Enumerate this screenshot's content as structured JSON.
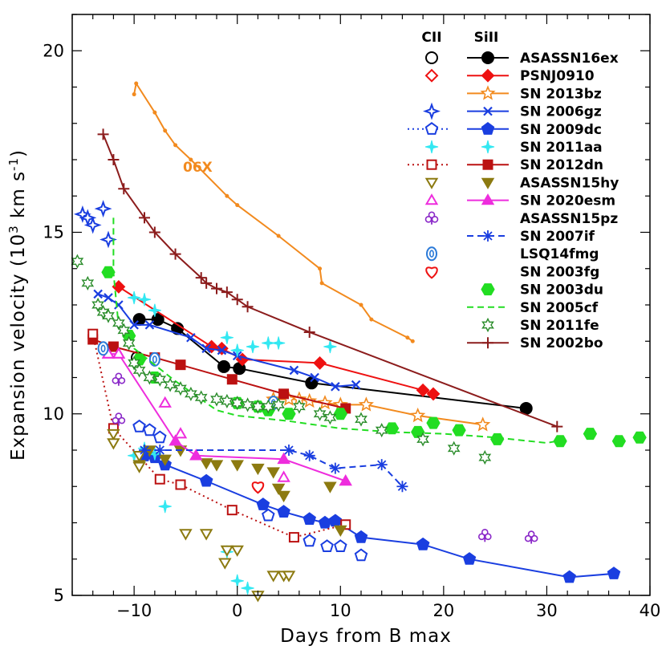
{
  "chart_data": {
    "type": "scatter",
    "xlabel": "Days from B max",
    "ylabel": "Expansion velocity (10³ km s⁻¹)",
    "ylabel_parts": {
      "main": "Expansion velocity (10",
      "sup1": "3",
      "unit": " km s",
      "sup2": "-1",
      "close": ")"
    },
    "xlim": [
      -16,
      40
    ],
    "ylim": [
      5,
      21
    ],
    "xticks": [
      -10,
      0,
      10,
      20,
      30,
      40
    ],
    "yticks": [
      5,
      10,
      15,
      20
    ],
    "legend_headers": {
      "c2": "CII",
      "si2": "SiII"
    },
    "annotations": [
      {
        "text": "06X",
        "x": -5.5,
        "y": 16.7,
        "color": "#f28a1e"
      }
    ],
    "series": [
      {
        "name": "ASASSN16ex",
        "color": "#000000",
        "marker": "circle",
        "fill": true,
        "line": "solid",
        "si": [
          [
            -9.5,
            12.6
          ],
          [
            -7.7,
            12.6
          ],
          [
            -5.8,
            12.35
          ],
          [
            -1.3,
            11.3
          ],
          [
            0.2,
            11.25
          ],
          [
            7.2,
            10.85
          ],
          [
            28,
            10.15
          ]
        ],
        "c": [
          [
            -9.7,
            11.55
          ]
        ]
      },
      {
        "name": "PSNJ0910",
        "color": "#ee1111",
        "marker": "diamond",
        "fill": true,
        "line": "solid",
        "si": [
          [
            -11.5,
            13.5
          ],
          [
            -2.5,
            11.85
          ],
          [
            -1.5,
            11.8
          ],
          [
            0.5,
            11.5
          ],
          [
            8,
            11.4
          ],
          [
            18,
            10.65
          ],
          [
            19,
            10.55
          ]
        ],
        "c": []
      },
      {
        "name": "SN 2013bz",
        "color": "#f28a1e",
        "marker": "star5",
        "fill": false,
        "line": "solid",
        "si": [
          [
            3.5,
            10.4
          ],
          [
            5,
            10.4
          ],
          [
            6,
            10.4
          ],
          [
            7,
            10.35
          ],
          [
            8.5,
            10.3
          ],
          [
            10,
            10.25
          ],
          [
            12.5,
            10.25
          ],
          [
            17.5,
            9.95
          ],
          [
            23.8,
            9.7
          ]
        ],
        "c": []
      },
      {
        "name": "SN 2006gz",
        "color": "#1a3ee0",
        "marker": "cross",
        "fill": false,
        "line": "solid",
        "si": [
          [
            -13.5,
            13.3
          ],
          [
            -12.5,
            13.2
          ],
          [
            -11.5,
            13.0
          ],
          [
            -10,
            12.45
          ],
          [
            -8.5,
            12.45
          ],
          [
            -4.5,
            12.1
          ],
          [
            -3,
            11.8
          ],
          [
            -1.5,
            11.75
          ],
          [
            0,
            11.6
          ],
          [
            5.5,
            11.2
          ],
          [
            7.5,
            11.0
          ],
          [
            9.5,
            10.75
          ],
          [
            11.5,
            10.8
          ]
        ],
        "c": [
          [
            -15,
            15.5
          ],
          [
            -14,
            15.2
          ],
          [
            -12.5,
            14.8
          ],
          [
            -14.5,
            15.4
          ],
          [
            -13,
            15.65
          ]
        ]
      },
      {
        "name": "SN 2009dc",
        "color": "#1a3ee0",
        "marker": "pentagon",
        "fill": true,
        "line": "solid",
        "si": [
          [
            -9,
            8.85
          ],
          [
            -8,
            8.8
          ],
          [
            -7,
            8.6
          ],
          [
            -3,
            8.15
          ],
          [
            2.5,
            7.5
          ],
          [
            4.5,
            7.3
          ],
          [
            7,
            7.1
          ],
          [
            8.5,
            7.0
          ],
          [
            9.5,
            7.05
          ],
          [
            12,
            6.6
          ],
          [
            18,
            6.4
          ],
          [
            22.5,
            6.0
          ],
          [
            32.2,
            5.5
          ],
          [
            36.5,
            5.6
          ]
        ],
        "c": [
          [
            -9.5,
            9.65
          ],
          [
            -8.5,
            9.55
          ],
          [
            -7.5,
            9.35
          ],
          [
            3,
            7.2
          ],
          [
            7,
            6.5
          ],
          [
            8.7,
            6.35
          ],
          [
            10,
            6.35
          ],
          [
            12,
            6.1
          ]
        ]
      },
      {
        "name": "SN 2011aa",
        "color": "#33e8f2",
        "marker": "spark",
        "fill": true,
        "line": "none",
        "si": [
          [
            -10,
            13.2
          ],
          [
            -9,
            13.15
          ],
          [
            -8,
            12.85
          ],
          [
            -1,
            12.1
          ],
          [
            0,
            11.75
          ],
          [
            1.5,
            11.85
          ],
          [
            3,
            11.95
          ],
          [
            4,
            11.95
          ],
          [
            9,
            11.85
          ]
        ],
        "c": [
          [
            -10,
            8.85
          ],
          [
            -9,
            9.05
          ],
          [
            -8,
            8.9
          ],
          [
            -7,
            7.45
          ],
          [
            -1,
            6.2
          ],
          [
            0,
            5.4
          ],
          [
            1,
            5.2
          ]
        ]
      },
      {
        "name": "SN 2012dn",
        "color": "#bb1111",
        "marker": "square",
        "fill": true,
        "line": "solid",
        "si": [
          [
            -14,
            12.05
          ],
          [
            -12,
            11.85
          ],
          [
            -8,
            11.55
          ],
          [
            -5.5,
            11.35
          ],
          [
            -0.5,
            10.95
          ],
          [
            4.5,
            10.55
          ],
          [
            10.5,
            10.15
          ]
        ],
        "c": [
          [
            -14,
            12.2
          ],
          [
            -12,
            9.6
          ],
          [
            -7.5,
            8.2
          ],
          [
            -5.5,
            8.05
          ],
          [
            -0.5,
            7.35
          ],
          [
            5.5,
            6.6
          ],
          [
            10.5,
            6.95
          ]
        ]
      },
      {
        "name": "ASASSN15hy",
        "color": "#8c7a10",
        "marker": "tri-down",
        "fill": true,
        "line": "none",
        "si": [
          [
            -9.5,
            8.6
          ],
          [
            -8.5,
            9.0
          ],
          [
            -7,
            8.75
          ],
          [
            -5.5,
            9.0
          ],
          [
            -3,
            8.65
          ],
          [
            -2,
            8.6
          ],
          [
            0,
            8.6
          ],
          [
            2,
            8.5
          ],
          [
            3.5,
            8.4
          ],
          [
            4,
            7.95
          ],
          [
            4.5,
            7.75
          ],
          [
            9,
            8.0
          ],
          [
            10,
            6.8
          ]
        ],
        "c": [
          [
            -12,
            9.45
          ],
          [
            -12,
            9.2
          ],
          [
            -9.5,
            8.85
          ],
          [
            -9.5,
            8.55
          ],
          [
            -5,
            6.7
          ],
          [
            -3,
            6.7
          ],
          [
            -1,
            6.25
          ],
          [
            0,
            6.25
          ],
          [
            -1.2,
            5.9
          ],
          [
            3.5,
            5.55
          ],
          [
            4.5,
            5.55
          ],
          [
            5,
            5.55
          ],
          [
            2,
            5.0
          ]
        ]
      },
      {
        "name": "SN 2020esm",
        "color": "#ee2ddd",
        "marker": "tri-up",
        "fill": true,
        "line": "solid",
        "si": [
          [
            -12.5,
            11.65
          ],
          [
            -11.5,
            11.65
          ],
          [
            -6,
            9.25
          ],
          [
            -4,
            8.85
          ],
          [
            4.5,
            8.75
          ],
          [
            10.5,
            8.15
          ]
        ],
        "c": [
          [
            -12.5,
            11.65
          ],
          [
            -11.5,
            11.65
          ],
          [
            -7,
            10.3
          ],
          [
            -5.5,
            9.45
          ],
          [
            4.5,
            8.25
          ]
        ]
      },
      {
        "name": "ASASSN15pz",
        "color": "#8a28c8",
        "marker": "club",
        "fill": false,
        "line": "none",
        "si": [],
        "c": [
          [
            -11.5,
            10.95
          ],
          [
            -11.5,
            9.85
          ],
          [
            24,
            6.65
          ],
          [
            28.5,
            6.6
          ]
        ]
      },
      {
        "name": "SN 2007if",
        "color": "#1a3ee0",
        "marker": "asterisk",
        "fill": false,
        "line": "dashed",
        "si": [
          [
            -9,
            9.0
          ],
          [
            -7.5,
            9.0
          ],
          [
            5,
            9.0
          ],
          [
            7,
            8.85
          ],
          [
            9.5,
            8.5
          ],
          [
            14,
            8.6
          ],
          [
            16,
            8.0
          ]
        ],
        "c": []
      },
      {
        "name": "LSQ14fmg",
        "color": "#2b7ad8",
        "marker": "oval",
        "fill": false,
        "line": "none",
        "si": [],
        "c": [
          [
            -13,
            11.8
          ],
          [
            -8,
            11.5
          ],
          [
            3.5,
            10.3
          ]
        ]
      },
      {
        "name": "SN 2003fg",
        "color": "#ee1111",
        "marker": "heart",
        "fill": false,
        "line": "none",
        "si": [],
        "c": [
          [
            2,
            8.0
          ]
        ]
      },
      {
        "name": "SN 2003du",
        "color": "#22dd22",
        "marker": "hexagon",
        "fill": true,
        "line": "none",
        "si": [
          [
            -12.5,
            13.9
          ],
          [
            -10.5,
            12.15
          ],
          [
            -9.5,
            11.5
          ],
          [
            -8,
            11.0
          ],
          [
            0,
            10.3
          ],
          [
            2,
            10.2
          ],
          [
            3,
            10.1
          ],
          [
            5,
            10.0
          ],
          [
            10,
            10.0
          ],
          [
            15,
            9.6
          ],
          [
            17.5,
            9.5
          ],
          [
            19,
            9.75
          ],
          [
            21.5,
            9.55
          ],
          [
            25.2,
            9.3
          ],
          [
            31.3,
            9.25
          ],
          [
            34.2,
            9.45
          ],
          [
            37,
            9.25
          ],
          [
            39,
            9.35
          ]
        ],
        "c": []
      },
      {
        "name": "SN 2005cf",
        "color": "#22dd22",
        "marker": "none",
        "fill": false,
        "line": "dashed",
        "si": [
          [
            -12,
            15.4
          ],
          [
            -12,
            13.9
          ],
          [
            -11.5,
            12.4
          ],
          [
            -10,
            11.8
          ],
          [
            -6,
            10.9
          ],
          [
            -2,
            10.1
          ],
          [
            0,
            9.95
          ],
          [
            5,
            9.8
          ],
          [
            10,
            9.6
          ],
          [
            15,
            9.5
          ],
          [
            20,
            9.45
          ],
          [
            25,
            9.35
          ],
          [
            30,
            9.2
          ],
          [
            31,
            9.25
          ]
        ],
        "c": []
      },
      {
        "name": "SN 2011fe",
        "color": "#2a8c2a",
        "marker": "star6",
        "fill": false,
        "line": "none",
        "si": [
          [
            -15.5,
            14.2
          ],
          [
            -14.5,
            13.6
          ],
          [
            -13.5,
            13.0
          ],
          [
            -13,
            12.8
          ],
          [
            -12.5,
            12.7
          ],
          [
            -11.5,
            12.5
          ],
          [
            -11,
            12.3
          ],
          [
            -10.5,
            11.95
          ],
          [
            -10,
            11.4
          ],
          [
            -9.5,
            11.2
          ],
          [
            -8.5,
            11.0
          ],
          [
            -7.5,
            10.95
          ],
          [
            -6.5,
            10.8
          ],
          [
            -5.5,
            10.7
          ],
          [
            -4.5,
            10.55
          ],
          [
            -3.5,
            10.45
          ],
          [
            -2,
            10.4
          ],
          [
            -1,
            10.35
          ],
          [
            0,
            10.3
          ],
          [
            1,
            10.25
          ],
          [
            2,
            10.2
          ],
          [
            3,
            10.2
          ],
          [
            4,
            10.25
          ],
          [
            6,
            10.2
          ],
          [
            8,
            10.0
          ],
          [
            9,
            9.9
          ],
          [
            12,
            9.85
          ],
          [
            14,
            9.55
          ],
          [
            18,
            9.3
          ],
          [
            21,
            9.05
          ],
          [
            24,
            8.8
          ]
        ],
        "c": []
      },
      {
        "name": "SN 2002bo",
        "color": "#8c1c1c",
        "marker": "plus",
        "fill": false,
        "line": "solid",
        "si": [
          [
            -13,
            17.7
          ],
          [
            -12,
            17.0
          ],
          [
            -11,
            16.2
          ],
          [
            -9,
            15.4
          ],
          [
            -8,
            15.0
          ],
          [
            -6,
            14.4
          ],
          [
            -3.5,
            13.75
          ],
          [
            -3,
            13.6
          ],
          [
            -2,
            13.45
          ],
          [
            -1,
            13.35
          ],
          [
            0,
            13.15
          ],
          [
            1,
            12.95
          ],
          [
            7,
            12.25
          ],
          [
            31,
            9.65
          ]
        ],
        "c": []
      }
    ],
    "reference_curve": {
      "name": "06X",
      "color": "#f28a1e",
      "points": [
        [
          -10,
          18.8
        ],
        [
          -9.8,
          19.1
        ],
        [
          -8,
          18.3
        ],
        [
          -7,
          17.8
        ],
        [
          -6,
          17.4
        ],
        [
          -4.5,
          17.0
        ],
        [
          -1,
          16.0
        ],
        [
          0,
          15.75
        ],
        [
          4,
          14.9
        ],
        [
          8,
          14.0
        ],
        [
          8.2,
          13.6
        ],
        [
          12,
          13.0
        ],
        [
          13,
          12.6
        ],
        [
          16.5,
          12.1
        ],
        [
          17,
          12.0
        ]
      ]
    }
  }
}
